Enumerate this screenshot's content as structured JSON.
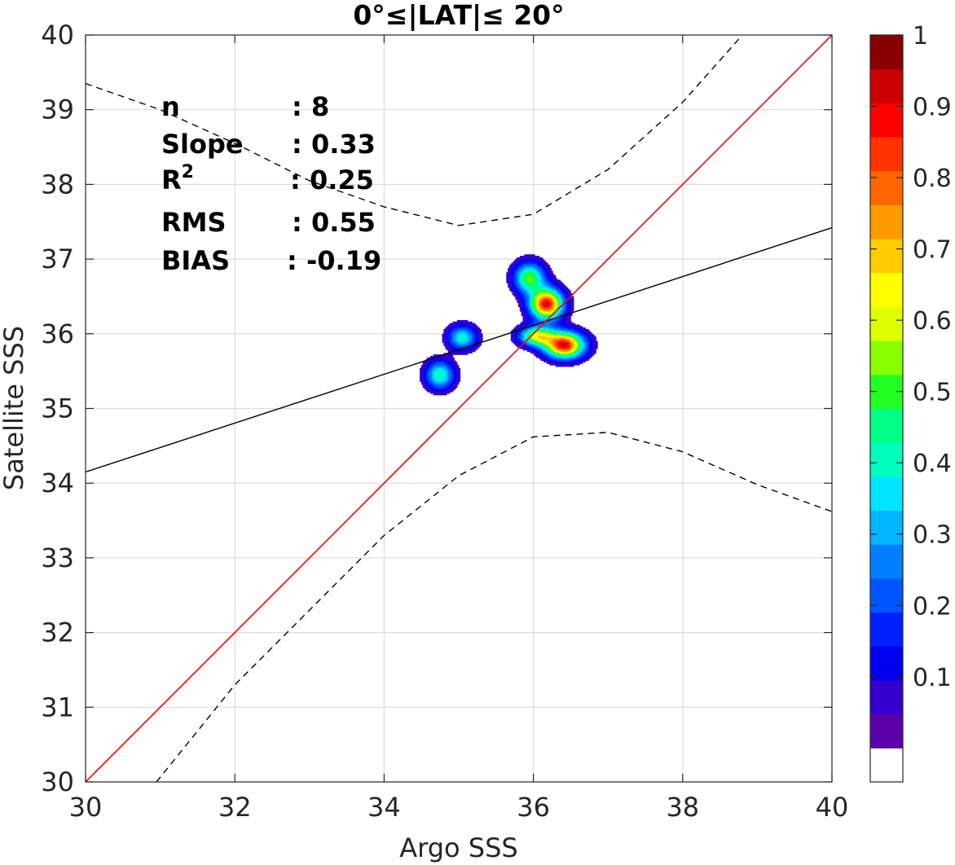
{
  "chart_data": {
    "type": "contour",
    "title": "0°≤|LAT|≤ 20°",
    "xlabel": "Argo SSS",
    "ylabel": "Satellite SSS",
    "xlim": [
      30,
      40
    ],
    "ylim": [
      30,
      40
    ],
    "xticks": [
      "30",
      "32",
      "34",
      "36",
      "38",
      "40"
    ],
    "yticks": [
      "30",
      "31",
      "32",
      "33",
      "34",
      "35",
      "36",
      "37",
      "38",
      "39",
      "40"
    ],
    "grid": true,
    "stats": [
      {
        "label": "n",
        "value": ": 8"
      },
      {
        "label": "Slope",
        "value": ": 0.33"
      },
      {
        "label": "R",
        "sup": "2",
        "value": ": 0.25"
      },
      {
        "label": "RMS",
        "value": ": 0.55"
      },
      {
        "label": "BIAS",
        "value": ": -0.19"
      }
    ],
    "one_to_one_line": {
      "color": "#ff0000",
      "x": [
        30,
        40
      ],
      "y": [
        30,
        40
      ]
    },
    "regression_line": {
      "color": "#000000",
      "x": [
        30,
        40
      ],
      "y": [
        34.15,
        37.42
      ]
    },
    "upper_bound": {
      "style": "dashed",
      "x": [
        30,
        31,
        32,
        33,
        34,
        35,
        36,
        37,
        38,
        38.8
      ],
      "y": [
        39.35,
        39.0,
        38.55,
        38.05,
        37.7,
        37.45,
        37.6,
        38.2,
        39.1,
        40.0
      ]
    },
    "lower_bound": {
      "style": "dashed",
      "x": [
        30.95,
        32,
        33,
        34,
        35,
        36,
        37,
        38,
        39,
        40
      ],
      "y": [
        30.0,
        31.3,
        32.3,
        33.3,
        34.1,
        34.62,
        34.68,
        34.42,
        33.98,
        33.62
      ]
    },
    "density_peaks": [
      {
        "x": 34.75,
        "y": 35.45,
        "peak": 0.45,
        "sx": 0.13,
        "sy": 0.13
      },
      {
        "x": 35.05,
        "y": 35.95,
        "peak": 0.42,
        "sx": 0.13,
        "sy": 0.11
      },
      {
        "x": 35.95,
        "y": 36.75,
        "peak": 0.55,
        "sx": 0.14,
        "sy": 0.14
      },
      {
        "x": 36.18,
        "y": 36.4,
        "peak": 0.95,
        "sx": 0.15,
        "sy": 0.14
      },
      {
        "x": 36.42,
        "y": 35.85,
        "peak": 0.95,
        "sx": 0.18,
        "sy": 0.12
      },
      {
        "x": 36.05,
        "y": 35.97,
        "peak": 0.62,
        "sx": 0.16,
        "sy": 0.09
      }
    ],
    "colorbar": {
      "ticks": [
        "0.1",
        "0.2",
        "0.3",
        "0.4",
        "0.5",
        "0.6",
        "0.7",
        "0.8",
        "0.9",
        "1"
      ],
      "levels": [
        0,
        0.05,
        0.1,
        0.15,
        0.2,
        0.25,
        0.3,
        0.35,
        0.4,
        0.45,
        0.5,
        0.55,
        0.6,
        0.65,
        0.7,
        0.75,
        0.8,
        0.85,
        0.9,
        0.95,
        1.0
      ],
      "colors": [
        "#ffffff",
        "#5c00aa",
        "#3300d0",
        "#0000f0",
        "#0020ff",
        "#0055ff",
        "#0080ff",
        "#00b5ff",
        "#00e5ff",
        "#00ffbb",
        "#00ff88",
        "#22ff22",
        "#88ff00",
        "#ddff00",
        "#ffff00",
        "#ffcc00",
        "#ff9900",
        "#ff6600",
        "#ff3300",
        "#ff0000",
        "#cc0000",
        "#880000"
      ]
    }
  }
}
